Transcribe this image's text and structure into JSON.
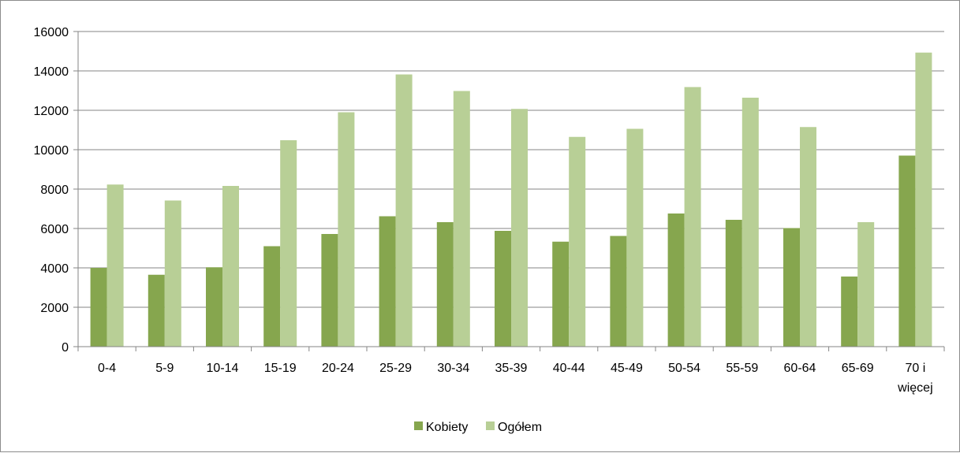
{
  "chart_data": {
    "type": "bar",
    "categories": [
      "0-4",
      "5-9",
      "10-14",
      "15-19",
      "20-24",
      "25-29",
      "30-34",
      "35-39",
      "40-44",
      "45-49",
      "50-54",
      "55-59",
      "60-64",
      "65-69",
      "70 i więcej"
    ],
    "series": [
      {
        "name": "Kobiety",
        "color": "#86a64e",
        "values": [
          4000,
          3650,
          4030,
          5100,
          5720,
          6620,
          6320,
          5880,
          5330,
          5620,
          6760,
          6440,
          6020,
          3560,
          9700
        ]
      },
      {
        "name": "Ogółem",
        "color": "#b8cf96",
        "values": [
          8230,
          7420,
          8160,
          10480,
          11900,
          13820,
          12980,
          12070,
          10650,
          11060,
          13180,
          12640,
          11150,
          6320,
          14930
        ]
      }
    ],
    "y_ticks": [
      "0",
      "2000",
      "4000",
      "6000",
      "8000",
      "10000",
      "12000",
      "14000",
      "16000"
    ],
    "ylim": [
      0,
      16000
    ],
    "grid": true,
    "legend_position": "bottom",
    "title": "",
    "xlabel": "",
    "ylabel": ""
  }
}
